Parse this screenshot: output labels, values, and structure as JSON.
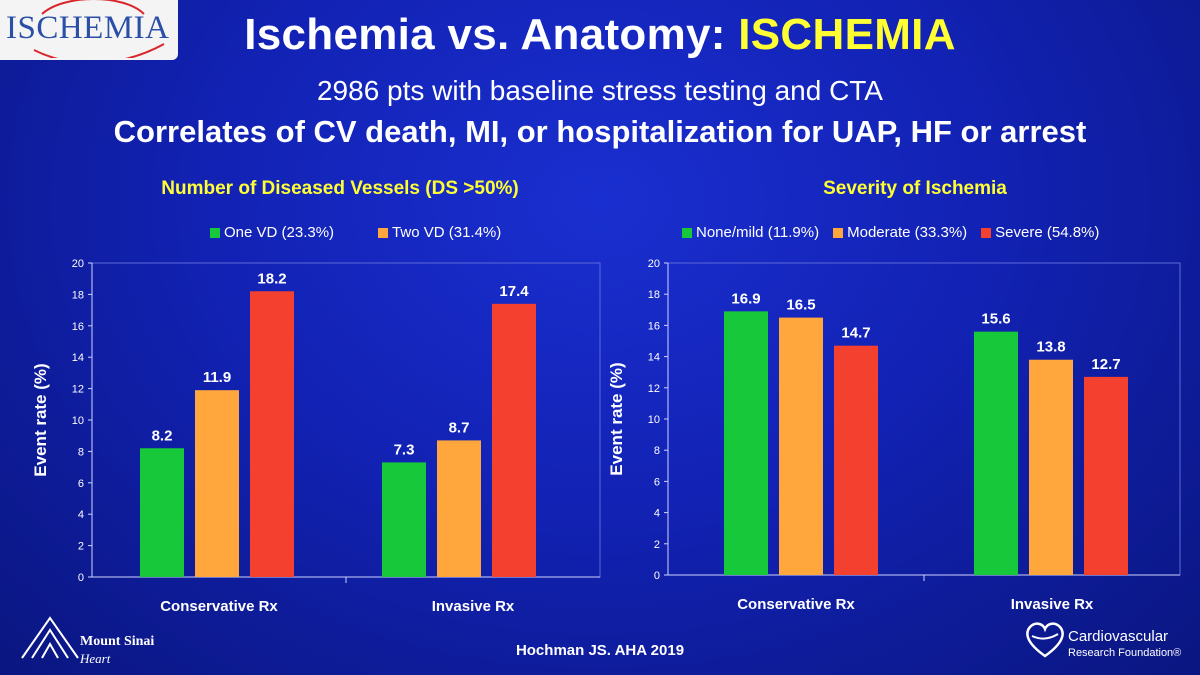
{
  "header": {
    "logo_text": "ISCHEMIA",
    "title_main": "Ischemia vs. Anatomy: ",
    "title_highlight": "ISCHEMIA",
    "subtitle1": "2986 pts with baseline stress testing and CTA",
    "subtitle2": "Correlates of CV death, MI, or hospitalization for UAP, HF or arrest"
  },
  "colors": {
    "green": "#17c93a",
    "orange": "#ffa63c",
    "red": "#f4412f",
    "yellow": "#ffff33"
  },
  "chart_data": [
    {
      "type": "bar",
      "title": "Number of Diseased Vessels (DS >50%)",
      "categories": [
        "Conservative Rx",
        "Invasive Rx"
      ],
      "series": [
        {
          "name": "One VD (23.3%)",
          "color": "#17c93a",
          "values": [
            8.2,
            7.3
          ]
        },
        {
          "name": "Two VD (31.4%)",
          "color": "#ffa63c",
          "values": [
            11.9,
            8.7
          ]
        },
        {
          "name": "",
          "color": "#f4412f",
          "values": [
            18.2,
            17.4
          ]
        }
      ],
      "ylabel": "Event rate (%)",
      "ylim": [
        0,
        20
      ],
      "yticks": [
        "0",
        "2",
        "4",
        "6",
        "8",
        "10",
        "12",
        "14",
        "16",
        "18",
        "20"
      ],
      "data_labels": [
        [
          "8.2",
          "7.3"
        ],
        [
          "11.9",
          "8.7"
        ],
        [
          "18.2",
          "17.4"
        ]
      ]
    },
    {
      "type": "bar",
      "title": "Severity of Ischemia",
      "categories": [
        "Conservative Rx",
        "Invasive Rx"
      ],
      "series": [
        {
          "name": "None/mild (11.9%)",
          "color": "#17c93a",
          "values": [
            16.9,
            15.6
          ]
        },
        {
          "name": "Moderate (33.3%)",
          "color": "#ffa63c",
          "values": [
            16.5,
            13.8
          ]
        },
        {
          "name": "Severe (54.8%)",
          "color": "#f4412f",
          "values": [
            14.7,
            12.7
          ]
        }
      ],
      "ylabel": "Event rate (%)",
      "ylim": [
        0,
        20
      ],
      "yticks": [
        "0",
        "2",
        "4",
        "6",
        "8",
        "10",
        "12",
        "14",
        "16",
        "18",
        "20"
      ],
      "data_labels": [
        [
          "16.9",
          "15.6"
        ],
        [
          "16.5",
          "13.8"
        ],
        [
          "14.7",
          "12.7"
        ]
      ]
    }
  ],
  "footer": {
    "citation": "Hochman JS. AHA 2019",
    "left_org": "Mount Sinai",
    "left_org_sub": "Heart",
    "right_org": "Cardiovascular",
    "right_org_sub": "Research Foundation®"
  }
}
